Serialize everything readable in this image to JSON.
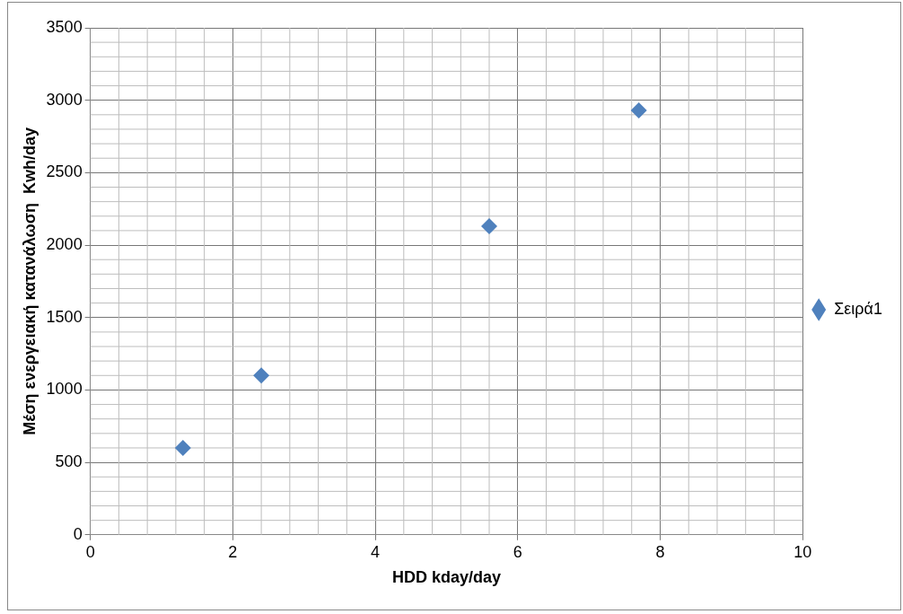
{
  "chart_data": {
    "type": "scatter",
    "xlabel": "HDD kday/day",
    "ylabel": "Μέση ενεργειακή κατανάλωση  Kwh/day",
    "x": [
      1.3,
      2.4,
      5.6,
      7.7
    ],
    "series": [
      {
        "name": "Σειρά1",
        "color": "#4f81bd",
        "values": [
          600,
          1100,
          2130,
          2930
        ]
      }
    ],
    "xlim": [
      0,
      10
    ],
    "xticks": [
      0,
      2,
      4,
      6,
      8,
      10
    ],
    "ylim": [
      0,
      3500
    ],
    "yticks": [
      0,
      500,
      1000,
      1500,
      2000,
      2500,
      3000,
      3500
    ],
    "grid": true,
    "legend": "right",
    "marker": "diamond"
  }
}
